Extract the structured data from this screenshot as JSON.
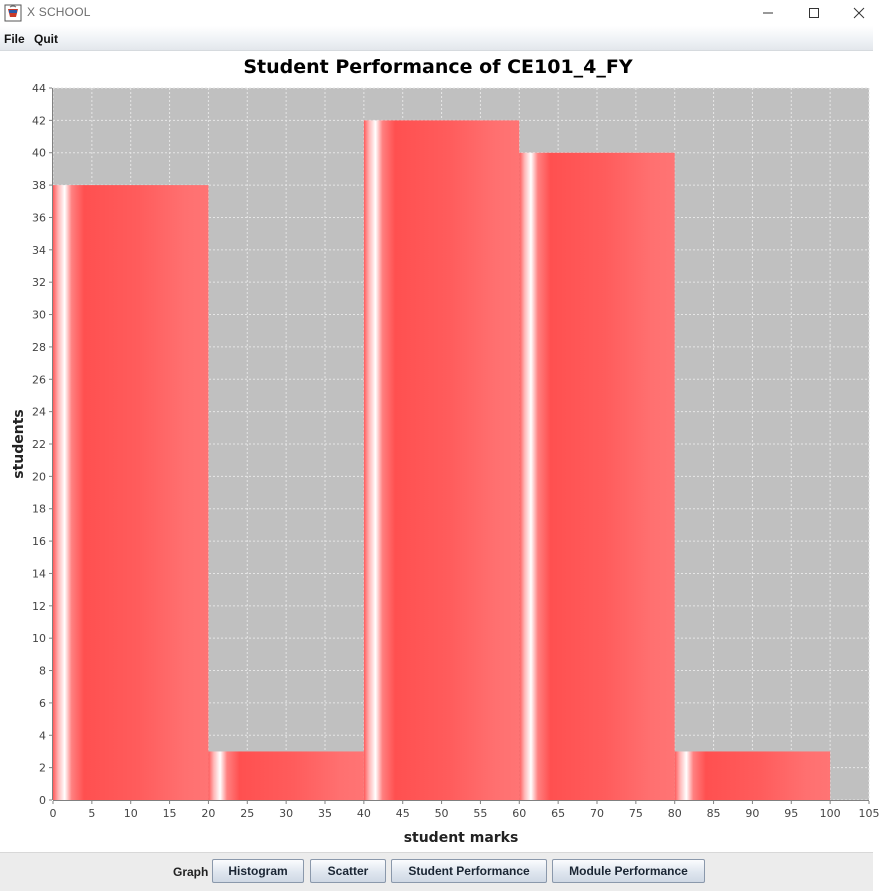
{
  "window": {
    "title": "X SCHOOL",
    "icon": "cup-app-icon",
    "controls": [
      "minimize-icon",
      "maximize-icon",
      "close-icon"
    ]
  },
  "menu": {
    "file": "File",
    "quit": "Quit"
  },
  "chart_data": {
    "type": "bar",
    "title": "Student Performance of CE101_4_FY",
    "xlabel": "student marks",
    "ylabel": "students",
    "xlim": [
      0,
      105
    ],
    "ylim": [
      0,
      44
    ],
    "x_ticks": [
      "0",
      "5",
      "10",
      "15",
      "20",
      "25",
      "30",
      "35",
      "40",
      "45",
      "50",
      "55",
      "60",
      "65",
      "70",
      "75",
      "80",
      "85",
      "90",
      "95",
      "100",
      "105"
    ],
    "y_ticks": [
      "0",
      "2",
      "4",
      "6",
      "8",
      "10",
      "12",
      "14",
      "16",
      "18",
      "20",
      "22",
      "24",
      "26",
      "28",
      "30",
      "32",
      "34",
      "36",
      "38",
      "40",
      "42",
      "44"
    ],
    "bins": [
      {
        "start": 0,
        "end": 20,
        "value": 38
      },
      {
        "start": 20,
        "end": 40,
        "value": 3
      },
      {
        "start": 40,
        "end": 60,
        "value": 42
      },
      {
        "start": 60,
        "end": 80,
        "value": 40
      },
      {
        "start": 80,
        "end": 100,
        "value": 3
      }
    ],
    "grid": true,
    "colors": {
      "bar": "#ff5555",
      "plot_background": "#c0c0c0",
      "grid": "#e6e6e6"
    }
  },
  "bottom": {
    "graph_label": "Graph",
    "buttons": {
      "histogram": "Histogram",
      "scatter": "Scatter",
      "student_performance": "Student Performance",
      "module_performance": "Module Performance"
    }
  }
}
